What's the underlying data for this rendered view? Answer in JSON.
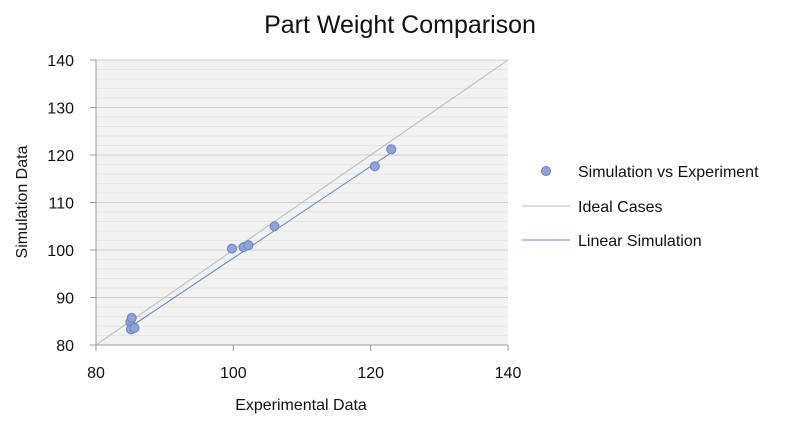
{
  "chart_data": {
    "type": "scatter",
    "title": "Part Weight Comparison",
    "xlabel": "Experimental Data",
    "ylabel": "Simulation Data",
    "xlim": [
      80,
      140
    ],
    "ylim": [
      80,
      140
    ],
    "x_ticks": [
      "80",
      "100",
      "120",
      "140"
    ],
    "y_ticks": [
      "80",
      "90",
      "100",
      "110",
      "120",
      "130",
      "140"
    ],
    "grid": true,
    "legend_position": "right",
    "series": [
      {
        "name": "Simulation vs Experiment",
        "kind": "points",
        "color": "#8ea3d9",
        "edge_color": "#6b82c3",
        "points": [
          {
            "x": 85.0,
            "y": 84.8
          },
          {
            "x": 85.2,
            "y": 85.7
          },
          {
            "x": 85.1,
            "y": 83.3
          },
          {
            "x": 85.6,
            "y": 83.6
          },
          {
            "x": 99.8,
            "y": 100.3
          },
          {
            "x": 101.5,
            "y": 100.6
          },
          {
            "x": 102.2,
            "y": 101.0
          },
          {
            "x": 106.0,
            "y": 105.0
          },
          {
            "x": 120.6,
            "y": 117.6
          },
          {
            "x": 123.0,
            "y": 121.2
          }
        ]
      },
      {
        "name": "Ideal Cases",
        "kind": "line",
        "color": "#b8b8b8",
        "points": [
          {
            "x": 80,
            "y": 80
          },
          {
            "x": 140,
            "y": 140
          }
        ]
      },
      {
        "name": "Linear Simulation",
        "kind": "line",
        "color": "#5b7fc7",
        "points": [
          {
            "x": 85.0,
            "y": 83.8
          },
          {
            "x": 123.0,
            "y": 120.5
          }
        ]
      }
    ]
  }
}
